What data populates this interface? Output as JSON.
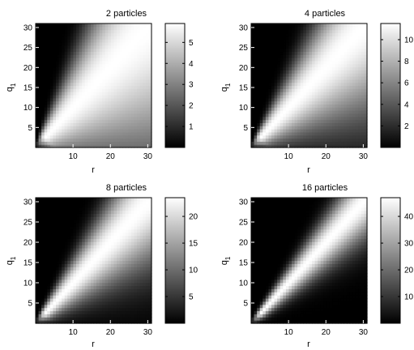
{
  "chart_data": [
    {
      "type": "heatmap",
      "title": "2 particles",
      "xlabel": "r",
      "ylabel_base": "q",
      "ylabel_sub": "1",
      "xlim": [
        0,
        31
      ],
      "ylim": [
        0,
        31
      ],
      "xticks": [
        "10",
        "20",
        "30"
      ],
      "yticks": [
        "5",
        "10",
        "15",
        "20",
        "25",
        "30"
      ],
      "colorbar": {
        "min": 0,
        "max": 5.9,
        "ticks": [
          "1",
          "2",
          "3",
          "4",
          "5"
        ]
      },
      "colormap": "gray",
      "ridge_value": 5.9,
      "width_factor": 0.75
    },
    {
      "type": "heatmap",
      "title": "4 particles",
      "xlabel": "r",
      "ylabel_base": "q",
      "ylabel_sub": "1",
      "xlim": [
        0,
        31
      ],
      "ylim": [
        0,
        31
      ],
      "xticks": [
        "10",
        "20",
        "30"
      ],
      "yticks": [
        "5",
        "10",
        "15",
        "20",
        "25",
        "30"
      ],
      "colorbar": {
        "min": 0,
        "max": 11.5,
        "ticks": [
          "2",
          "4",
          "6",
          "8",
          "10"
        ]
      },
      "colormap": "gray",
      "ridge_value": 11.5,
      "width_factor": 0.5
    },
    {
      "type": "heatmap",
      "title": "8 particles",
      "xlabel": "r",
      "ylabel_base": "q",
      "ylabel_sub": "1",
      "xlim": [
        0,
        31
      ],
      "ylim": [
        0,
        31
      ],
      "xticks": [
        "10",
        "20",
        "30"
      ],
      "yticks": [
        "5",
        "10",
        "15",
        "20",
        "25",
        "30"
      ],
      "colorbar": {
        "min": 0,
        "max": 23.5,
        "ticks": [
          "5",
          "10",
          "15",
          "20"
        ]
      },
      "colormap": "gray",
      "ridge_value": 23.5,
      "width_factor": 0.35
    },
    {
      "type": "heatmap",
      "title": "16 particles",
      "xlabel": "r",
      "ylabel_base": "q",
      "ylabel_sub": "1",
      "xlim": [
        0,
        31
      ],
      "ylim": [
        0,
        31
      ],
      "xticks": [
        "10",
        "20",
        "30"
      ],
      "yticks": [
        "5",
        "10",
        "15",
        "20",
        "25",
        "30"
      ],
      "colorbar": {
        "min": 0,
        "max": 47,
        "ticks": [
          "10",
          "20",
          "30",
          "40"
        ]
      },
      "colormap": "gray",
      "ridge_value": 47,
      "width_factor": 0.2
    }
  ]
}
